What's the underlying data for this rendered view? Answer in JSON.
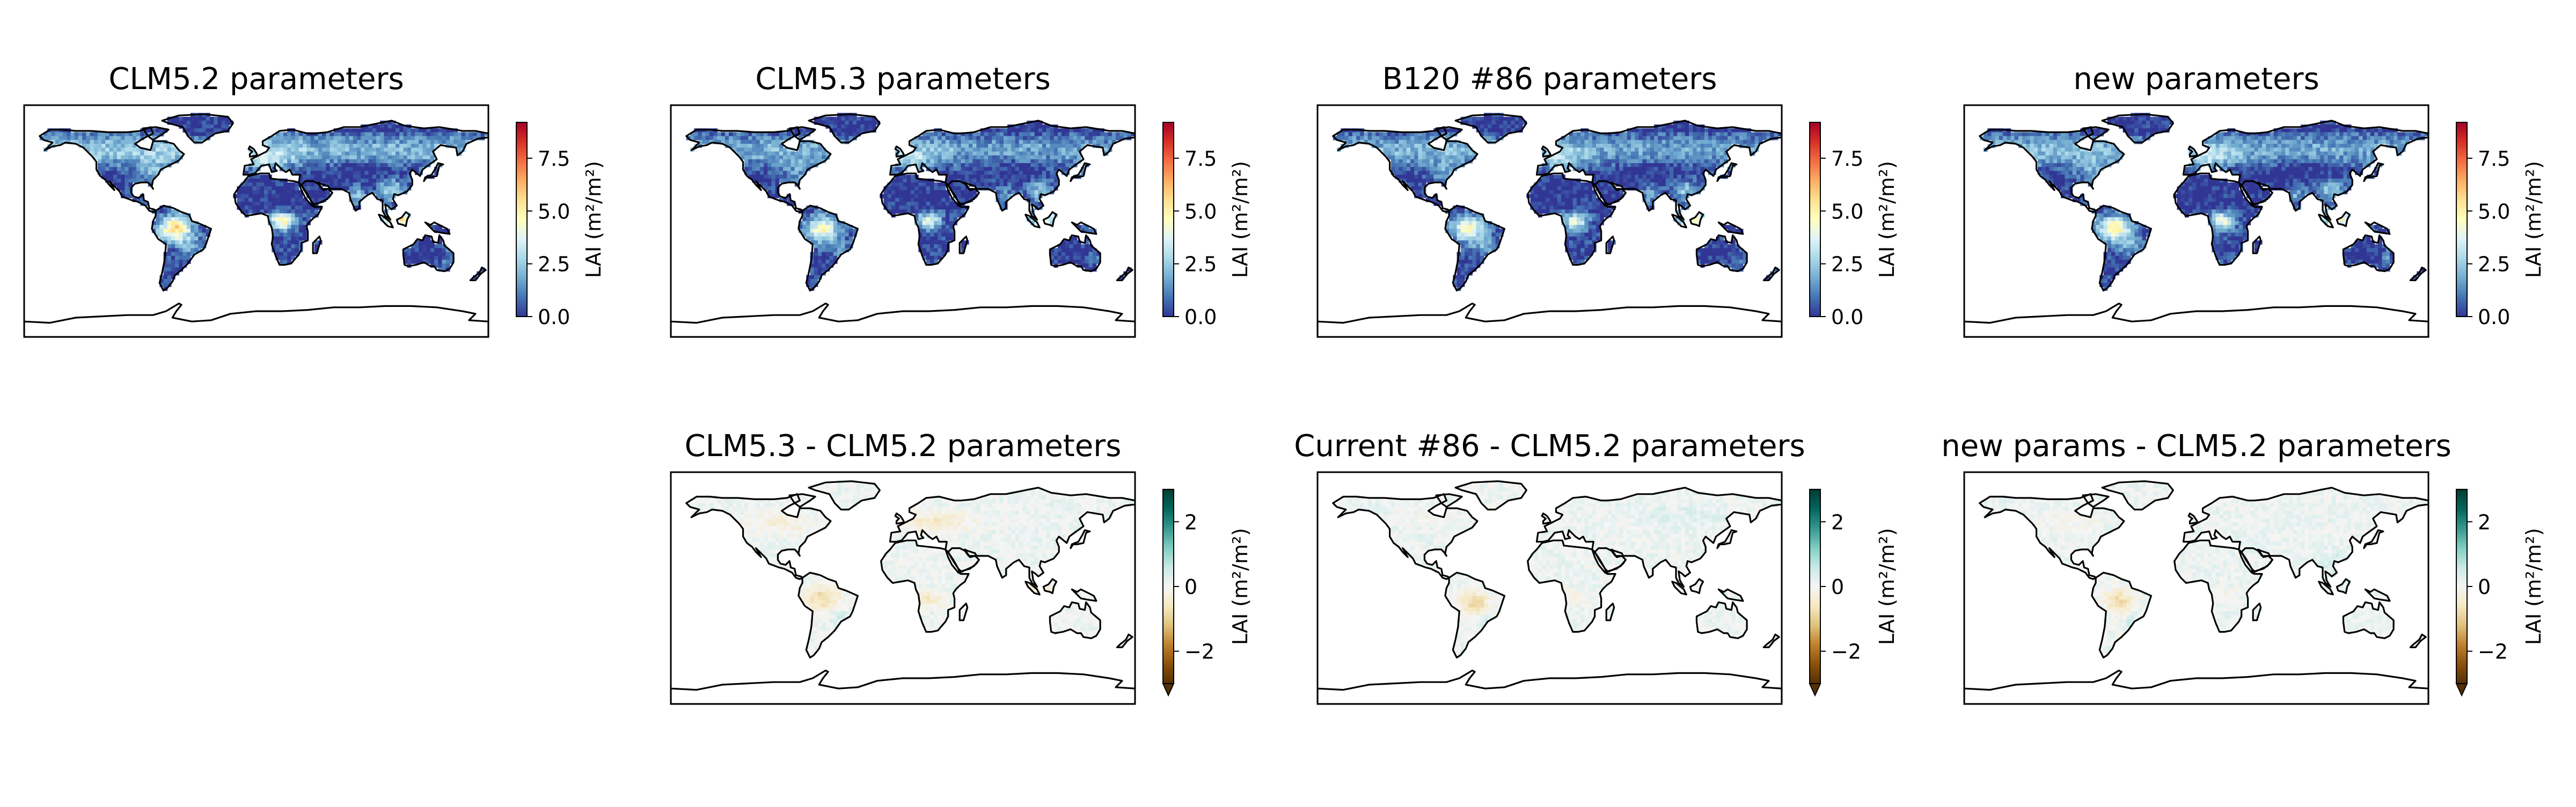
{
  "figure": {
    "panels": [
      {
        "id": "p1",
        "title": "CLM5.2 parameters",
        "kind": "abs",
        "scale": 1.12
      },
      {
        "id": "p2",
        "title": "CLM5.3 parameters",
        "kind": "abs",
        "scale": 0.9
      },
      {
        "id": "p3",
        "title": "B120 #86 parameters",
        "kind": "abs",
        "scale": 0.93
      },
      {
        "id": "p4",
        "title": "new parameters",
        "kind": "abs",
        "scale": 1.0
      },
      {
        "id": "p5",
        "title": "CLM5.3 - CLM5.2 parameters",
        "kind": "diff",
        "variant": 1
      },
      {
        "id": "p6",
        "title": "Current #86 - CLM5.2 parameters",
        "kind": "diff",
        "variant": 2
      },
      {
        "id": "p7",
        "title": "new params - CLM5.2 parameters",
        "kind": "diff",
        "variant": 3
      }
    ],
    "colorbars": {
      "abs": {
        "label": "LAI (m²/m²)",
        "ticks": [
          0.0,
          2.5,
          5.0,
          7.5
        ],
        "tick_labels": [
          "0.0",
          "2.5",
          "5.0",
          "7.5"
        ],
        "range": [
          0,
          9.2
        ],
        "colormap": "RdYlBu_r",
        "extend": "neither"
      },
      "diff": {
        "label": "LAI (m²/m²)",
        "ticks": [
          -2,
          0,
          2
        ],
        "tick_labels": [
          "−2",
          "0",
          "2"
        ],
        "range": [
          -3,
          3
        ],
        "colormap": "BrBG",
        "extend": "min"
      }
    },
    "colors": {
      "ocean": "#ffffff",
      "coastline": "#000000",
      "frame": "#000000",
      "abs_cmap": [
        "#313695",
        "#4575b4",
        "#74add1",
        "#abd9e9",
        "#e0f3f8",
        "#ffffbf",
        "#fee090",
        "#fdae61",
        "#f46d43",
        "#d73027",
        "#a50026"
      ],
      "diff_cmap": [
        "#543005",
        "#8c510a",
        "#bf812d",
        "#dfc27d",
        "#f6e8c3",
        "#f5f5f5",
        "#c7eae5",
        "#80cdc1",
        "#35978f",
        "#01665e",
        "#003c30"
      ]
    }
  }
}
